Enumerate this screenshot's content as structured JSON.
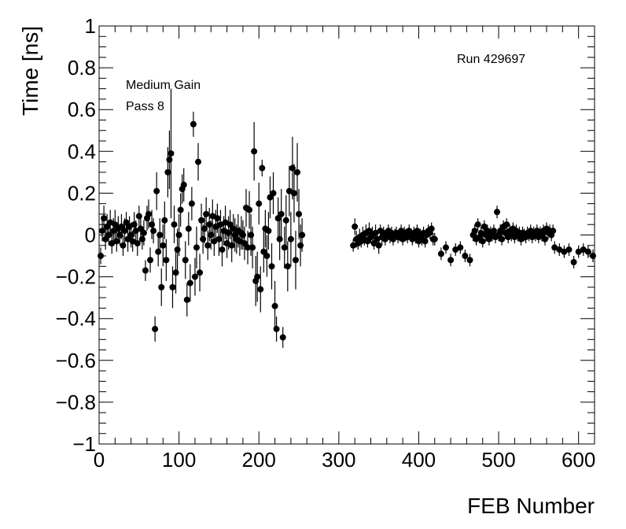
{
  "chart_data": {
    "type": "scatter",
    "title": "",
    "xlabel": "FEB Number",
    "ylabel": "Time [ns]",
    "xlim": [
      0,
      620
    ],
    "ylim": [
      -1,
      1
    ],
    "grid": false,
    "x_ticks": [
      0,
      100,
      200,
      300,
      400,
      500,
      600
    ],
    "x_tick_labels": [
      "0",
      "100",
      "200",
      "300",
      "400",
      "500",
      "600"
    ],
    "y_ticks": [
      -1,
      -0.8,
      -0.6,
      -0.4,
      -0.2,
      0,
      0.2,
      0.4,
      0.6,
      0.8,
      1
    ],
    "y_tick_labels": [
      "−1",
      "−0.8",
      "−0.6",
      "−0.4",
      "−0.2",
      "0",
      "0.2",
      "0.4",
      "0.6",
      "0.8",
      "1"
    ],
    "annotations": {
      "run": "Run 429697",
      "gain": "Medium Gain",
      "pass": "Pass 8"
    },
    "points": [
      {
        "x": 2,
        "y": -0.1,
        "e": 0.04
      },
      {
        "x": 4,
        "y": 0.02,
        "e": 0.05
      },
      {
        "x": 6,
        "y": 0.08,
        "e": 0.06
      },
      {
        "x": 8,
        "y": -0.02,
        "e": 0.05
      },
      {
        "x": 10,
        "y": 0.04,
        "e": 0.06
      },
      {
        "x": 12,
        "y": 0.0,
        "e": 0.05
      },
      {
        "x": 14,
        "y": 0.06,
        "e": 0.06
      },
      {
        "x": 16,
        "y": -0.04,
        "e": 0.05
      },
      {
        "x": 18,
        "y": 0.02,
        "e": 0.06
      },
      {
        "x": 20,
        "y": 0.05,
        "e": 0.07
      },
      {
        "x": 22,
        "y": -0.03,
        "e": 0.05
      },
      {
        "x": 24,
        "y": 0.03,
        "e": 0.06
      },
      {
        "x": 26,
        "y": 0.0,
        "e": 0.05
      },
      {
        "x": 28,
        "y": 0.04,
        "e": 0.06
      },
      {
        "x": 30,
        "y": -0.05,
        "e": 0.05
      },
      {
        "x": 32,
        "y": 0.02,
        "e": 0.06
      },
      {
        "x": 34,
        "y": 0.06,
        "e": 0.05
      },
      {
        "x": 36,
        "y": -0.02,
        "e": 0.06
      },
      {
        "x": 38,
        "y": 0.04,
        "e": 0.05
      },
      {
        "x": 40,
        "y": 0.0,
        "e": 0.06
      },
      {
        "x": 42,
        "y": -0.03,
        "e": 0.05
      },
      {
        "x": 44,
        "y": 0.05,
        "e": 0.06
      },
      {
        "x": 46,
        "y": 0.02,
        "e": 0.05
      },
      {
        "x": 48,
        "y": -0.04,
        "e": 0.06
      },
      {
        "x": 50,
        "y": 0.09,
        "e": 0.05
      },
      {
        "x": 52,
        "y": 0.03,
        "e": 0.06
      },
      {
        "x": 54,
        "y": -0.02,
        "e": 0.05
      },
      {
        "x": 56,
        "y": 0.01,
        "e": 0.06
      },
      {
        "x": 58,
        "y": -0.17,
        "e": 0.05
      },
      {
        "x": 60,
        "y": 0.08,
        "e": 0.06
      },
      {
        "x": 62,
        "y": 0.1,
        "e": 0.07
      },
      {
        "x": 64,
        "y": -0.12,
        "e": 0.06
      },
      {
        "x": 66,
        "y": 0.05,
        "e": 0.07
      },
      {
        "x": 68,
        "y": 0.02,
        "e": 0.06
      },
      {
        "x": 70,
        "y": -0.45,
        "e": 0.06
      },
      {
        "x": 72,
        "y": 0.21,
        "e": 0.09
      },
      {
        "x": 74,
        "y": -0.08,
        "e": 0.07
      },
      {
        "x": 76,
        "y": 0.0,
        "e": 0.08
      },
      {
        "x": 78,
        "y": -0.25,
        "e": 0.09
      },
      {
        "x": 80,
        "y": -0.05,
        "e": 0.1
      },
      {
        "x": 82,
        "y": 0.07,
        "e": 0.09
      },
      {
        "x": 84,
        "y": -0.12,
        "e": 0.1
      },
      {
        "x": 86,
        "y": 0.3,
        "e": 0.12
      },
      {
        "x": 88,
        "y": 0.36,
        "e": 0.14
      },
      {
        "x": 90,
        "y": 0.39,
        "e": 0.31
      },
      {
        "x": 92,
        "y": -0.25,
        "e": 0.1
      },
      {
        "x": 94,
        "y": 0.05,
        "e": 0.09
      },
      {
        "x": 96,
        "y": -0.18,
        "e": 0.1
      },
      {
        "x": 98,
        "y": -0.07,
        "e": 0.1
      },
      {
        "x": 100,
        "y": 0.0,
        "e": 0.1
      },
      {
        "x": 102,
        "y": 0.12,
        "e": 0.08
      },
      {
        "x": 104,
        "y": 0.22,
        "e": 0.07
      },
      {
        "x": 106,
        "y": 0.24,
        "e": 0.08
      },
      {
        "x": 108,
        "y": -0.12,
        "e": 0.09
      },
      {
        "x": 110,
        "y": -0.31,
        "e": 0.08
      },
      {
        "x": 112,
        "y": 0.03,
        "e": 0.08
      },
      {
        "x": 114,
        "y": -0.23,
        "e": 0.09
      },
      {
        "x": 116,
        "y": 0.15,
        "e": 0.08
      },
      {
        "x": 118,
        "y": 0.53,
        "e": 0.06
      },
      {
        "x": 120,
        "y": -0.2,
        "e": 0.09
      },
      {
        "x": 122,
        "y": -0.06,
        "e": 0.1
      },
      {
        "x": 124,
        "y": 0.35,
        "e": 0.09
      },
      {
        "x": 126,
        "y": -0.18,
        "e": 0.09
      },
      {
        "x": 128,
        "y": 0.07,
        "e": 0.08
      },
      {
        "x": 130,
        "y": -0.02,
        "e": 0.07
      },
      {
        "x": 132,
        "y": 0.03,
        "e": 0.07
      },
      {
        "x": 134,
        "y": 0.1,
        "e": 0.08
      },
      {
        "x": 136,
        "y": -0.05,
        "e": 0.07
      },
      {
        "x": 138,
        "y": 0.05,
        "e": 0.08
      },
      {
        "x": 140,
        "y": 0.0,
        "e": 0.07
      },
      {
        "x": 142,
        "y": 0.09,
        "e": 0.08
      },
      {
        "x": 144,
        "y": -0.03,
        "e": 0.07
      },
      {
        "x": 146,
        "y": 0.04,
        "e": 0.08
      },
      {
        "x": 148,
        "y": 0.08,
        "e": 0.07
      },
      {
        "x": 150,
        "y": -0.02,
        "e": 0.08
      },
      {
        "x": 152,
        "y": 0.05,
        "e": 0.07
      },
      {
        "x": 154,
        "y": -0.07,
        "e": 0.08
      },
      {
        "x": 156,
        "y": 0.02,
        "e": 0.07
      },
      {
        "x": 158,
        "y": 0.06,
        "e": 0.08
      },
      {
        "x": 160,
        "y": -0.04,
        "e": 0.07
      },
      {
        "x": 162,
        "y": 0.01,
        "e": 0.08
      },
      {
        "x": 164,
        "y": 0.05,
        "e": 0.07
      },
      {
        "x": 166,
        "y": -0.05,
        "e": 0.08
      },
      {
        "x": 168,
        "y": 0.03,
        "e": 0.07
      },
      {
        "x": 170,
        "y": 0.0,
        "e": 0.08
      },
      {
        "x": 172,
        "y": -0.02,
        "e": 0.07
      },
      {
        "x": 174,
        "y": 0.02,
        "e": 0.08
      },
      {
        "x": 176,
        "y": -0.03,
        "e": 0.07
      },
      {
        "x": 178,
        "y": 0.01,
        "e": 0.08
      },
      {
        "x": 180,
        "y": 0.0,
        "e": 0.07
      },
      {
        "x": 182,
        "y": -0.04,
        "e": 0.08
      },
      {
        "x": 184,
        "y": 0.13,
        "e": 0.09
      },
      {
        "x": 186,
        "y": -0.06,
        "e": 0.08
      },
      {
        "x": 188,
        "y": 0.12,
        "e": 0.09
      },
      {
        "x": 190,
        "y": 0.0,
        "e": 0.1
      },
      {
        "x": 192,
        "y": -0.06,
        "e": 0.1
      },
      {
        "x": 194,
        "y": 0.4,
        "e": 0.14
      },
      {
        "x": 196,
        "y": -0.22,
        "e": 0.12
      },
      {
        "x": 198,
        "y": -0.2,
        "e": 0.12
      },
      {
        "x": 200,
        "y": 0.15,
        "e": 0.1
      },
      {
        "x": 202,
        "y": -0.26,
        "e": 0.11
      },
      {
        "x": 204,
        "y": 0.32,
        "e": 0.04
      },
      {
        "x": 206,
        "y": -0.08,
        "e": 0.1
      },
      {
        "x": 208,
        "y": 0.03,
        "e": 0.09
      },
      {
        "x": 210,
        "y": -0.1,
        "e": 0.1
      },
      {
        "x": 212,
        "y": 0.02,
        "e": 0.09
      },
      {
        "x": 214,
        "y": 0.18,
        "e": 0.1
      },
      {
        "x": 216,
        "y": -0.15,
        "e": 0.11
      },
      {
        "x": 218,
        "y": 0.2,
        "e": 0.1
      },
      {
        "x": 220,
        "y": -0.34,
        "e": 0.12
      },
      {
        "x": 222,
        "y": -0.45,
        "e": 0.06
      },
      {
        "x": 224,
        "y": 0.08,
        "e": 0.1
      },
      {
        "x": 226,
        "y": -0.02,
        "e": 0.1
      },
      {
        "x": 228,
        "y": 0.1,
        "e": 0.12
      },
      {
        "x": 230,
        "y": -0.49,
        "e": 0.05
      },
      {
        "x": 232,
        "y": -0.06,
        "e": 0.1
      },
      {
        "x": 234,
        "y": 0.07,
        "e": 0.12
      },
      {
        "x": 236,
        "y": -0.15,
        "e": 0.12
      },
      {
        "x": 238,
        "y": 0.21,
        "e": 0.12
      },
      {
        "x": 240,
        "y": -0.02,
        "e": 0.13
      },
      {
        "x": 242,
        "y": 0.32,
        "e": 0.15
      },
      {
        "x": 244,
        "y": 0.2,
        "e": 0.14
      },
      {
        "x": 246,
        "y": -0.12,
        "e": 0.14
      },
      {
        "x": 248,
        "y": 0.3,
        "e": 0.14
      },
      {
        "x": 250,
        "y": 0.1,
        "e": 0.12
      },
      {
        "x": 252,
        "y": -0.05,
        "e": 0.1
      },
      {
        "x": 254,
        "y": 0.0,
        "e": 0.08
      },
      {
        "x": 318,
        "y": -0.05,
        "e": 0.03
      },
      {
        "x": 320,
        "y": 0.04,
        "e": 0.04
      },
      {
        "x": 322,
        "y": -0.02,
        "e": 0.04
      },
      {
        "x": 324,
        "y": -0.04,
        "e": 0.03
      },
      {
        "x": 326,
        "y": -0.01,
        "e": 0.04
      },
      {
        "x": 328,
        "y": -0.03,
        "e": 0.03
      },
      {
        "x": 330,
        "y": 0.0,
        "e": 0.04
      },
      {
        "x": 332,
        "y": -0.02,
        "e": 0.03
      },
      {
        "x": 334,
        "y": 0.01,
        "e": 0.04
      },
      {
        "x": 336,
        "y": -0.03,
        "e": 0.03
      },
      {
        "x": 338,
        "y": 0.02,
        "e": 0.04
      },
      {
        "x": 340,
        "y": -0.01,
        "e": 0.03
      },
      {
        "x": 342,
        "y": 0.0,
        "e": 0.04
      },
      {
        "x": 344,
        "y": -0.04,
        "e": 0.03
      },
      {
        "x": 346,
        "y": 0.01,
        "e": 0.04
      },
      {
        "x": 348,
        "y": -0.02,
        "e": 0.03
      },
      {
        "x": 350,
        "y": -0.05,
        "e": 0.04
      },
      {
        "x": 352,
        "y": 0.02,
        "e": 0.03
      },
      {
        "x": 354,
        "y": -0.01,
        "e": 0.04
      },
      {
        "x": 356,
        "y": 0.01,
        "e": 0.03
      },
      {
        "x": 358,
        "y": -0.02,
        "e": 0.03
      },
      {
        "x": 360,
        "y": 0.0,
        "e": 0.03
      },
      {
        "x": 362,
        "y": 0.02,
        "e": 0.03
      },
      {
        "x": 364,
        "y": -0.01,
        "e": 0.03
      },
      {
        "x": 366,
        "y": 0.01,
        "e": 0.03
      },
      {
        "x": 368,
        "y": -0.02,
        "e": 0.03
      },
      {
        "x": 370,
        "y": 0.0,
        "e": 0.03
      },
      {
        "x": 372,
        "y": 0.01,
        "e": 0.03
      },
      {
        "x": 374,
        "y": -0.01,
        "e": 0.03
      },
      {
        "x": 376,
        "y": 0.0,
        "e": 0.03
      },
      {
        "x": 378,
        "y": 0.02,
        "e": 0.03
      },
      {
        "x": 380,
        "y": -0.02,
        "e": 0.03
      },
      {
        "x": 382,
        "y": 0.01,
        "e": 0.03
      },
      {
        "x": 384,
        "y": 0.0,
        "e": 0.03
      },
      {
        "x": 386,
        "y": -0.01,
        "e": 0.03
      },
      {
        "x": 388,
        "y": 0.02,
        "e": 0.03
      },
      {
        "x": 390,
        "y": 0.0,
        "e": 0.03
      },
      {
        "x": 392,
        "y": -0.02,
        "e": 0.03
      },
      {
        "x": 394,
        "y": 0.01,
        "e": 0.03
      },
      {
        "x": 396,
        "y": -0.01,
        "e": 0.03
      },
      {
        "x": 398,
        "y": 0.02,
        "e": 0.03
      },
      {
        "x": 400,
        "y": -0.03,
        "e": 0.03
      },
      {
        "x": 402,
        "y": 0.0,
        "e": 0.03
      },
      {
        "x": 404,
        "y": -0.02,
        "e": 0.03
      },
      {
        "x": 406,
        "y": 0.01,
        "e": 0.03
      },
      {
        "x": 408,
        "y": -0.03,
        "e": 0.03
      },
      {
        "x": 410,
        "y": 0.0,
        "e": 0.03
      },
      {
        "x": 412,
        "y": 0.02,
        "e": 0.03
      },
      {
        "x": 414,
        "y": 0.01,
        "e": 0.03
      },
      {
        "x": 416,
        "y": 0.03,
        "e": 0.03
      },
      {
        "x": 418,
        "y": -0.02,
        "e": 0.03
      },
      {
        "x": 420,
        "y": -0.02,
        "e": 0.03
      },
      {
        "x": 428,
        "y": -0.09,
        "e": 0.03
      },
      {
        "x": 434,
        "y": -0.06,
        "e": 0.03
      },
      {
        "x": 440,
        "y": -0.12,
        "e": 0.03
      },
      {
        "x": 446,
        "y": -0.07,
        "e": 0.03
      },
      {
        "x": 452,
        "y": -0.06,
        "e": 0.03
      },
      {
        "x": 458,
        "y": -0.1,
        "e": 0.03
      },
      {
        "x": 464,
        "y": -0.12,
        "e": 0.03
      },
      {
        "x": 468,
        "y": 0.0,
        "e": 0.03
      },
      {
        "x": 470,
        "y": 0.02,
        "e": 0.03
      },
      {
        "x": 472,
        "y": -0.02,
        "e": 0.03
      },
      {
        "x": 474,
        "y": 0.05,
        "e": 0.03
      },
      {
        "x": 476,
        "y": -0.01,
        "e": 0.03
      },
      {
        "x": 478,
        "y": 0.01,
        "e": 0.03
      },
      {
        "x": 480,
        "y": -0.03,
        "e": 0.03
      },
      {
        "x": 482,
        "y": 0.04,
        "e": 0.03
      },
      {
        "x": 484,
        "y": 0.0,
        "e": 0.03
      },
      {
        "x": 486,
        "y": 0.02,
        "e": 0.03
      },
      {
        "x": 488,
        "y": -0.02,
        "e": 0.03
      },
      {
        "x": 490,
        "y": 0.01,
        "e": 0.03
      },
      {
        "x": 492,
        "y": 0.0,
        "e": 0.03
      },
      {
        "x": 494,
        "y": 0.02,
        "e": 0.03
      },
      {
        "x": 496,
        "y": -0.01,
        "e": 0.03
      },
      {
        "x": 498,
        "y": 0.11,
        "e": 0.03
      },
      {
        "x": 500,
        "y": 0.0,
        "e": 0.03
      },
      {
        "x": 502,
        "y": 0.02,
        "e": 0.03
      },
      {
        "x": 504,
        "y": -0.02,
        "e": 0.03
      },
      {
        "x": 506,
        "y": 0.04,
        "e": 0.03
      },
      {
        "x": 508,
        "y": 0.01,
        "e": 0.03
      },
      {
        "x": 510,
        "y": 0.05,
        "e": 0.03
      },
      {
        "x": 512,
        "y": -0.01,
        "e": 0.03
      },
      {
        "x": 514,
        "y": 0.02,
        "e": 0.03
      },
      {
        "x": 516,
        "y": 0.0,
        "e": 0.03
      },
      {
        "x": 518,
        "y": 0.03,
        "e": 0.03
      },
      {
        "x": 520,
        "y": -0.01,
        "e": 0.03
      },
      {
        "x": 522,
        "y": 0.02,
        "e": 0.03
      },
      {
        "x": 524,
        "y": 0.0,
        "e": 0.03
      },
      {
        "x": 526,
        "y": 0.01,
        "e": 0.03
      },
      {
        "x": 528,
        "y": -0.02,
        "e": 0.03
      },
      {
        "x": 530,
        "y": 0.01,
        "e": 0.03
      },
      {
        "x": 532,
        "y": 0.0,
        "e": 0.03
      },
      {
        "x": 534,
        "y": -0.01,
        "e": 0.03
      },
      {
        "x": 536,
        "y": 0.01,
        "e": 0.03
      },
      {
        "x": 538,
        "y": 0.0,
        "e": 0.03
      },
      {
        "x": 540,
        "y": 0.02,
        "e": 0.03
      },
      {
        "x": 542,
        "y": -0.01,
        "e": 0.03
      },
      {
        "x": 544,
        "y": 0.01,
        "e": 0.03
      },
      {
        "x": 546,
        "y": 0.0,
        "e": 0.03
      },
      {
        "x": 548,
        "y": 0.02,
        "e": 0.03
      },
      {
        "x": 550,
        "y": -0.01,
        "e": 0.03
      },
      {
        "x": 552,
        "y": 0.01,
        "e": 0.03
      },
      {
        "x": 554,
        "y": 0.0,
        "e": 0.03
      },
      {
        "x": 556,
        "y": 0.02,
        "e": 0.03
      },
      {
        "x": 558,
        "y": -0.02,
        "e": 0.03
      },
      {
        "x": 560,
        "y": 0.03,
        "e": 0.03
      },
      {
        "x": 562,
        "y": 0.01,
        "e": 0.03
      },
      {
        "x": 564,
        "y": 0.02,
        "e": 0.03
      },
      {
        "x": 566,
        "y": 0.0,
        "e": 0.03
      },
      {
        "x": 568,
        "y": 0.02,
        "e": 0.03
      },
      {
        "x": 570,
        "y": -0.06,
        "e": 0.03
      },
      {
        "x": 576,
        "y": -0.07,
        "e": 0.03
      },
      {
        "x": 582,
        "y": -0.08,
        "e": 0.03
      },
      {
        "x": 588,
        "y": -0.07,
        "e": 0.03
      },
      {
        "x": 594,
        "y": -0.13,
        "e": 0.03
      },
      {
        "x": 600,
        "y": -0.08,
        "e": 0.03
      },
      {
        "x": 606,
        "y": -0.07,
        "e": 0.03
      },
      {
        "x": 612,
        "y": -0.08,
        "e": 0.03
      },
      {
        "x": 618,
        "y": -0.1,
        "e": 0.03
      }
    ]
  }
}
